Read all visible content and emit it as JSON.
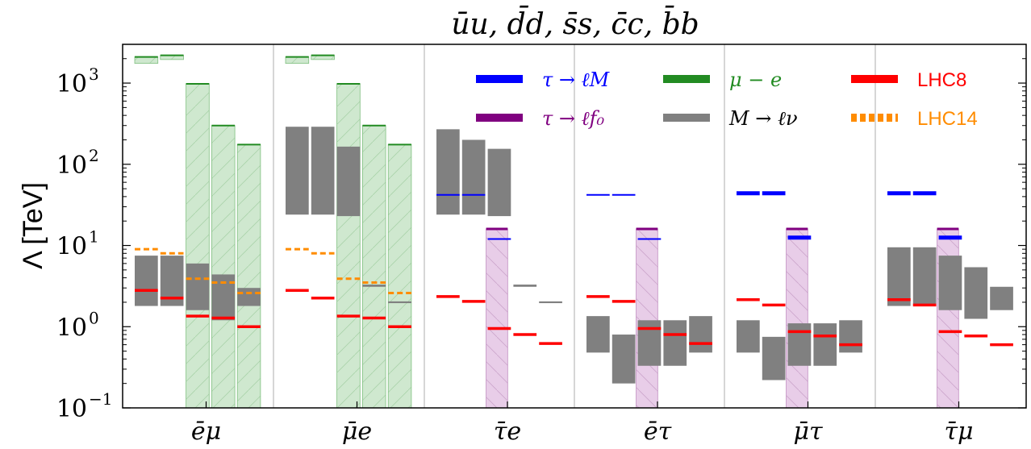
{
  "chart_data": {
    "type": "bar",
    "title": "ūu, d̄d, s̄s, c̄c, b̄b",
    "ylabel": "Λ [TeV]",
    "yscale": "log",
    "ylim": [
      0.1,
      3000
    ],
    "yticks": [
      {
        "value": 0.1,
        "base": "10",
        "exp": "−1"
      },
      {
        "value": 1,
        "base": "10",
        "exp": "0"
      },
      {
        "value": 10,
        "base": "10",
        "exp": "1"
      },
      {
        "value": 100,
        "base": "10",
        "exp": "2"
      },
      {
        "value": 1000,
        "base": "10",
        "exp": "3"
      }
    ],
    "groups": [
      "ēμ",
      "μ̄e",
      "τ̄e",
      "ēτ",
      "μ̄τ",
      "τ̄μ"
    ],
    "slots_per_group": 5,
    "legend": {
      "placement": "top-right",
      "entries": [
        {
          "label": "τ → ℓM",
          "color": "#0000ff",
          "style": "solid",
          "font": "math"
        },
        {
          "label": "μ − e",
          "color": "#228b22",
          "style": "solid",
          "font": "math"
        },
        {
          "label": "LHC8",
          "color": "#ff0000",
          "style": "solid",
          "font": "plain"
        },
        {
          "label": "τ → ℓf₀",
          "color": "#800080",
          "style": "solid",
          "font": "math"
        },
        {
          "label": "M → ℓν",
          "color": "#808080",
          "style": "solid",
          "font": "math"
        },
        {
          "label": "LHC14",
          "color": "#ff8c00",
          "style": "dashed",
          "font": "plain"
        }
      ]
    },
    "colors": {
      "tau_to_lM": "#0000ff",
      "tau_to_lf0": "#800080",
      "mu_e": "#228b22",
      "M_to_lnu": "#808080",
      "LHC8": "#ff0000",
      "LHC14": "#ff8c00",
      "green_fill": "#cfe8cf",
      "purple_fill": "#e8cde8"
    },
    "mu_e_bands": [
      {
        "group": 0,
        "slot": 0,
        "low": 1750,
        "high": 2100
      },
      {
        "group": 0,
        "slot": 1,
        "low": 1950,
        "high": 2200
      },
      {
        "group": 0,
        "slot": 2,
        "low": 0.1,
        "high": 980
      },
      {
        "group": 0,
        "slot": 3,
        "low": 0.1,
        "high": 300
      },
      {
        "group": 0,
        "slot": 4,
        "low": 0.1,
        "high": 175
      },
      {
        "group": 1,
        "slot": 0,
        "low": 1750,
        "high": 2100
      },
      {
        "group": 1,
        "slot": 1,
        "low": 1950,
        "high": 2200
      },
      {
        "group": 1,
        "slot": 2,
        "low": 0.1,
        "high": 980
      },
      {
        "group": 1,
        "slot": 3,
        "low": 0.1,
        "high": 300
      },
      {
        "group": 1,
        "slot": 4,
        "low": 0.1,
        "high": 175
      }
    ],
    "tau_lf0_bands": [
      {
        "group": 2,
        "slot": 2,
        "low": 0.1,
        "high": 16
      },
      {
        "group": 3,
        "slot": 2,
        "low": 0.1,
        "high": 16
      },
      {
        "group": 4,
        "slot": 2,
        "low": 0.1,
        "high": 16
      },
      {
        "group": 5,
        "slot": 2,
        "low": 0.1,
        "high": 16
      }
    ],
    "M_lnu_bars": [
      {
        "group": 0,
        "slot": 0,
        "low": 1.8,
        "high": 7.5
      },
      {
        "group": 0,
        "slot": 1,
        "low": 1.8,
        "high": 7.5
      },
      {
        "group": 0,
        "slot": 2,
        "low": 1.6,
        "high": 6.0
      },
      {
        "group": 0,
        "slot": 3,
        "low": 1.2,
        "high": 4.4
      },
      {
        "group": 0,
        "slot": 4,
        "low": 1.8,
        "high": 3.0
      },
      {
        "group": 1,
        "slot": 0,
        "low": 24,
        "high": 290
      },
      {
        "group": 1,
        "slot": 1,
        "low": 24,
        "high": 290
      },
      {
        "group": 1,
        "slot": 2,
        "low": 23,
        "high": 165
      },
      {
        "group": 1,
        "slot": 3,
        "low": 3.1,
        "high": 3.3
      },
      {
        "group": 1,
        "slot": 4,
        "low": 1.95,
        "high": 2.05
      },
      {
        "group": 2,
        "slot": 0,
        "low": 24,
        "high": 270
      },
      {
        "group": 2,
        "slot": 1,
        "low": 24,
        "high": 200
      },
      {
        "group": 2,
        "slot": 2,
        "low": 23,
        "high": 155
      },
      {
        "group": 2,
        "slot": 3,
        "low": 3.1,
        "high": 3.3
      },
      {
        "group": 2,
        "slot": 4,
        "low": 1.95,
        "high": 2.05
      },
      {
        "group": 3,
        "slot": 0,
        "low": 0.48,
        "high": 1.35
      },
      {
        "group": 3,
        "slot": 1,
        "low": 0.2,
        "high": 0.8
      },
      {
        "group": 3,
        "slot": 2,
        "low": 0.33,
        "high": 1.2
      },
      {
        "group": 3,
        "slot": 3,
        "low": 0.33,
        "high": 1.2
      },
      {
        "group": 3,
        "slot": 4,
        "low": 0.48,
        "high": 1.35
      },
      {
        "group": 4,
        "slot": 0,
        "low": 0.48,
        "high": 1.2
      },
      {
        "group": 4,
        "slot": 1,
        "low": 0.22,
        "high": 0.75
      },
      {
        "group": 4,
        "slot": 2,
        "low": 0.33,
        "high": 1.1
      },
      {
        "group": 4,
        "slot": 3,
        "low": 0.33,
        "high": 1.1
      },
      {
        "group": 4,
        "slot": 4,
        "low": 0.48,
        "high": 1.2
      },
      {
        "group": 5,
        "slot": 0,
        "low": 1.8,
        "high": 9.5
      },
      {
        "group": 5,
        "slot": 1,
        "low": 1.8,
        "high": 9.5
      },
      {
        "group": 5,
        "slot": 2,
        "low": 1.6,
        "high": 7.5
      },
      {
        "group": 5,
        "slot": 3,
        "low": 1.25,
        "high": 5.4
      },
      {
        "group": 5,
        "slot": 4,
        "low": 1.6,
        "high": 3.1
      }
    ],
    "tau_lM_lines": [
      {
        "group": 2,
        "slot": 0,
        "value": 42
      },
      {
        "group": 2,
        "slot": 1,
        "value": 42
      },
      {
        "group": 2,
        "slot": 2,
        "value": 12
      },
      {
        "group": 3,
        "slot": 0,
        "value": 42
      },
      {
        "group": 3,
        "slot": 1,
        "value": 42
      },
      {
        "group": 3,
        "slot": 2,
        "value": 12
      },
      {
        "group": 4,
        "slot": 0,
        "value": 44
      },
      {
        "group": 4,
        "slot": 1,
        "value": 44
      },
      {
        "group": 4,
        "slot": 2,
        "value": 12.5
      },
      {
        "group": 5,
        "slot": 0,
        "value": 44
      },
      {
        "group": 5,
        "slot": 1,
        "value": 44
      },
      {
        "group": 5,
        "slot": 2,
        "value": 12.5
      }
    ],
    "LHC8": [
      {
        "group": 0,
        "values": [
          2.8,
          2.25,
          1.35,
          1.28,
          1.0
        ]
      },
      {
        "group": 1,
        "values": [
          2.8,
          2.25,
          1.35,
          1.28,
          1.0
        ]
      },
      {
        "group": 2,
        "values": [
          2.35,
          2.05,
          0.95,
          0.8,
          0.62
        ]
      },
      {
        "group": 3,
        "values": [
          2.35,
          2.05,
          0.95,
          0.8,
          0.62
        ]
      },
      {
        "group": 4,
        "values": [
          2.15,
          1.85,
          0.87,
          0.77,
          0.6
        ]
      },
      {
        "group": 5,
        "values": [
          2.15,
          1.85,
          0.87,
          0.77,
          0.6
        ]
      }
    ],
    "LHC14": [
      {
        "group": 0,
        "values": [
          9.0,
          8.0,
          3.9,
          3.5,
          2.6
        ]
      },
      {
        "group": 1,
        "values": [
          9.0,
          8.0,
          3.9,
          3.5,
          2.6
        ]
      }
    ]
  }
}
